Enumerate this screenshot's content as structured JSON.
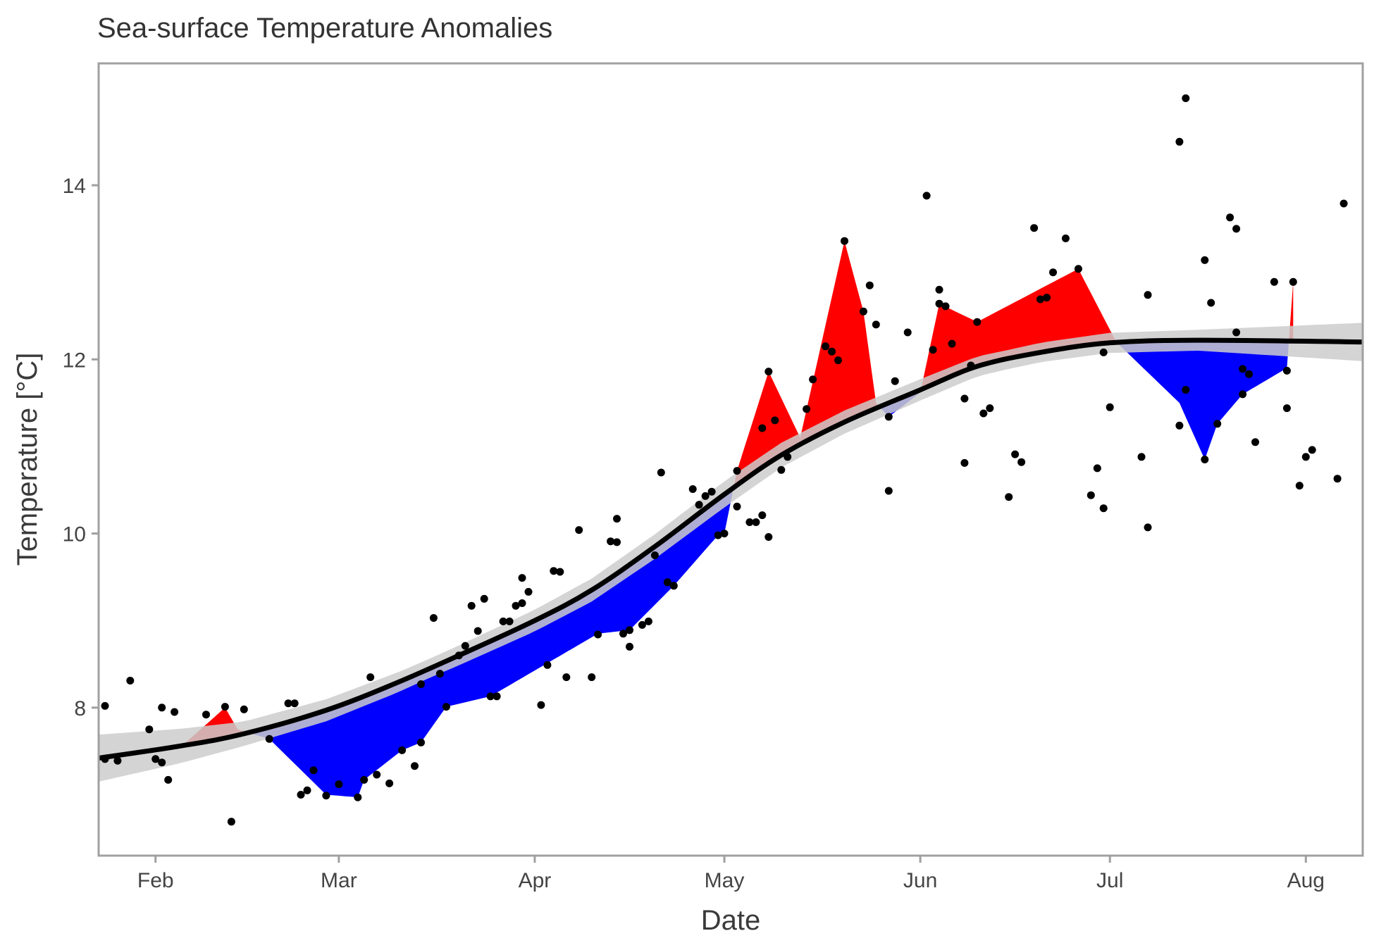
{
  "chart_data": {
    "type": "line",
    "title": "Sea-surface Temperature Anomalies",
    "xlabel": "Date",
    "ylabel": "Temperature [°C]",
    "x_ticks": [
      "Feb",
      "Mar",
      "Apr",
      "May",
      "Jun",
      "Jul",
      "Aug"
    ],
    "x_tick_dates": [
      "2000-02-01",
      "2000-03-01",
      "2000-04-01",
      "2000-05-01",
      "2000-06-01",
      "2000-07-01",
      "2000-08-01"
    ],
    "y_ticks": [
      8,
      10,
      12,
      14
    ],
    "xlim": [
      "2000-01-23",
      "2000-08-10"
    ],
    "ylim": [
      6.3,
      15.4
    ],
    "grid": false,
    "colors": {
      "above": "#ff0000",
      "below": "#0000ff",
      "trend": "#000000",
      "band": "#cccccc",
      "points": "#000000",
      "frame": "#a0a0a0"
    },
    "points": [
      {
        "x": "2000-01-24",
        "y": 8.02
      },
      {
        "x": "2000-01-24",
        "y": 7.41
      },
      {
        "x": "2000-01-26",
        "y": 7.39
      },
      {
        "x": "2000-01-28",
        "y": 8.31
      },
      {
        "x": "2000-01-31",
        "y": 7.75
      },
      {
        "x": "2000-02-01",
        "y": 7.41
      },
      {
        "x": "2000-02-02",
        "y": 8.0
      },
      {
        "x": "2000-02-02",
        "y": 7.37
      },
      {
        "x": "2000-02-03",
        "y": 7.17
      },
      {
        "x": "2000-02-04",
        "y": 7.95
      },
      {
        "x": "2000-02-09",
        "y": 7.92
      },
      {
        "x": "2000-02-12",
        "y": 8.01
      },
      {
        "x": "2000-02-13",
        "y": 6.69
      },
      {
        "x": "2000-02-15",
        "y": 7.98
      },
      {
        "x": "2000-02-19",
        "y": 7.64
      },
      {
        "x": "2000-02-22",
        "y": 8.05
      },
      {
        "x": "2000-02-23",
        "y": 8.05
      },
      {
        "x": "2000-02-24",
        "y": 7.0
      },
      {
        "x": "2000-02-25",
        "y": 7.05
      },
      {
        "x": "2000-02-26",
        "y": 7.28
      },
      {
        "x": "2000-02-28",
        "y": 6.99
      },
      {
        "x": "2000-03-01",
        "y": 7.12
      },
      {
        "x": "2000-03-04",
        "y": 6.97
      },
      {
        "x": "2000-03-05",
        "y": 7.17
      },
      {
        "x": "2000-03-06",
        "y": 8.35
      },
      {
        "x": "2000-03-07",
        "y": 7.23
      },
      {
        "x": "2000-03-09",
        "y": 7.13
      },
      {
        "x": "2000-03-11",
        "y": 7.51
      },
      {
        "x": "2000-03-13",
        "y": 7.33
      },
      {
        "x": "2000-03-14",
        "y": 8.27
      },
      {
        "x": "2000-03-14",
        "y": 7.6
      },
      {
        "x": "2000-03-16",
        "y": 9.03
      },
      {
        "x": "2000-03-17",
        "y": 8.39
      },
      {
        "x": "2000-03-18",
        "y": 8.01
      },
      {
        "x": "2000-03-20",
        "y": 8.6
      },
      {
        "x": "2000-03-21",
        "y": 8.71
      },
      {
        "x": "2000-03-22",
        "y": 9.17
      },
      {
        "x": "2000-03-23",
        "y": 8.88
      },
      {
        "x": "2000-03-24",
        "y": 9.25
      },
      {
        "x": "2000-03-25",
        "y": 8.13
      },
      {
        "x": "2000-03-26",
        "y": 8.13
      },
      {
        "x": "2000-03-27",
        "y": 8.99
      },
      {
        "x": "2000-03-28",
        "y": 8.99
      },
      {
        "x": "2000-03-29",
        "y": 9.17
      },
      {
        "x": "2000-03-30",
        "y": 9.49
      },
      {
        "x": "2000-03-30",
        "y": 9.2
      },
      {
        "x": "2000-03-31",
        "y": 9.33
      },
      {
        "x": "2000-04-02",
        "y": 8.03
      },
      {
        "x": "2000-04-03",
        "y": 8.49
      },
      {
        "x": "2000-04-04",
        "y": 9.57
      },
      {
        "x": "2000-04-05",
        "y": 9.56
      },
      {
        "x": "2000-04-06",
        "y": 8.35
      },
      {
        "x": "2000-04-08",
        "y": 10.04
      },
      {
        "x": "2000-04-10",
        "y": 8.35
      },
      {
        "x": "2000-04-11",
        "y": 8.84
      },
      {
        "x": "2000-04-13",
        "y": 9.91
      },
      {
        "x": "2000-04-14",
        "y": 10.17
      },
      {
        "x": "2000-04-14",
        "y": 9.9
      },
      {
        "x": "2000-04-15",
        "y": 8.85
      },
      {
        "x": "2000-04-16",
        "y": 8.89
      },
      {
        "x": "2000-04-16",
        "y": 8.7
      },
      {
        "x": "2000-04-18",
        "y": 8.95
      },
      {
        "x": "2000-04-19",
        "y": 8.99
      },
      {
        "x": "2000-04-20",
        "y": 9.75
      },
      {
        "x": "2000-04-21",
        "y": 10.7
      },
      {
        "x": "2000-04-22",
        "y": 9.44
      },
      {
        "x": "2000-04-23",
        "y": 9.4
      },
      {
        "x": "2000-04-26",
        "y": 10.51
      },
      {
        "x": "2000-04-27",
        "y": 10.33
      },
      {
        "x": "2000-04-28",
        "y": 10.43
      },
      {
        "x": "2000-04-29",
        "y": 10.48
      },
      {
        "x": "2000-04-30",
        "y": 9.98
      },
      {
        "x": "2000-05-01",
        "y": 10.0
      },
      {
        "x": "2000-05-03",
        "y": 10.72
      },
      {
        "x": "2000-05-03",
        "y": 10.31
      },
      {
        "x": "2000-05-05",
        "y": 10.13
      },
      {
        "x": "2000-05-06",
        "y": 10.13
      },
      {
        "x": "2000-05-07",
        "y": 11.21
      },
      {
        "x": "2000-05-07",
        "y": 10.21
      },
      {
        "x": "2000-05-08",
        "y": 11.86
      },
      {
        "x": "2000-05-08",
        "y": 9.96
      },
      {
        "x": "2000-05-09",
        "y": 11.3
      },
      {
        "x": "2000-05-10",
        "y": 10.73
      },
      {
        "x": "2000-05-11",
        "y": 10.88
      },
      {
        "x": "2000-05-14",
        "y": 11.43
      },
      {
        "x": "2000-05-15",
        "y": 11.77
      },
      {
        "x": "2000-05-17",
        "y": 12.15
      },
      {
        "x": "2000-05-18",
        "y": 12.09
      },
      {
        "x": "2000-05-19",
        "y": 11.99
      },
      {
        "x": "2000-05-20",
        "y": 13.36
      },
      {
        "x": "2000-05-23",
        "y": 12.55
      },
      {
        "x": "2000-05-24",
        "y": 12.85
      },
      {
        "x": "2000-05-25",
        "y": 12.4
      },
      {
        "x": "2000-05-27",
        "y": 11.34
      },
      {
        "x": "2000-05-27",
        "y": 10.49
      },
      {
        "x": "2000-05-28",
        "y": 11.75
      },
      {
        "x": "2000-05-30",
        "y": 12.31
      },
      {
        "x": "2000-06-02",
        "y": 13.88
      },
      {
        "x": "2000-06-03",
        "y": 12.11
      },
      {
        "x": "2000-06-04",
        "y": 12.8
      },
      {
        "x": "2000-06-04",
        "y": 12.64
      },
      {
        "x": "2000-06-05",
        "y": 12.61
      },
      {
        "x": "2000-06-06",
        "y": 12.18
      },
      {
        "x": "2000-06-08",
        "y": 11.55
      },
      {
        "x": "2000-06-08",
        "y": 10.81
      },
      {
        "x": "2000-06-09",
        "y": 11.93
      },
      {
        "x": "2000-06-10",
        "y": 12.43
      },
      {
        "x": "2000-06-11",
        "y": 11.38
      },
      {
        "x": "2000-06-12",
        "y": 11.44
      },
      {
        "x": "2000-06-15",
        "y": 10.42
      },
      {
        "x": "2000-06-16",
        "y": 10.91
      },
      {
        "x": "2000-06-17",
        "y": 10.82
      },
      {
        "x": "2000-06-19",
        "y": 13.51
      },
      {
        "x": "2000-06-20",
        "y": 12.69
      },
      {
        "x": "2000-06-21",
        "y": 12.71
      },
      {
        "x": "2000-06-22",
        "y": 13.0
      },
      {
        "x": "2000-06-24",
        "y": 13.39
      },
      {
        "x": "2000-06-26",
        "y": 13.04
      },
      {
        "x": "2000-06-28",
        "y": 10.44
      },
      {
        "x": "2000-06-29",
        "y": 10.75
      },
      {
        "x": "2000-06-30",
        "y": 10.29
      },
      {
        "x": "2000-06-30",
        "y": 12.08
      },
      {
        "x": "2000-07-01",
        "y": 11.45
      },
      {
        "x": "2000-07-06",
        "y": 10.88
      },
      {
        "x": "2000-07-07",
        "y": 10.07
      },
      {
        "x": "2000-07-07",
        "y": 12.74
      },
      {
        "x": "2000-07-12",
        "y": 14.5
      },
      {
        "x": "2000-07-12",
        "y": 11.24
      },
      {
        "x": "2000-07-13",
        "y": 15.0
      },
      {
        "x": "2000-07-13",
        "y": 11.65
      },
      {
        "x": "2000-07-16",
        "y": 13.14
      },
      {
        "x": "2000-07-16",
        "y": 10.85
      },
      {
        "x": "2000-07-17",
        "y": 12.65
      },
      {
        "x": "2000-07-18",
        "y": 11.26
      },
      {
        "x": "2000-07-20",
        "y": 13.63
      },
      {
        "x": "2000-07-21",
        "y": 13.5
      },
      {
        "x": "2000-07-21",
        "y": 12.31
      },
      {
        "x": "2000-07-22",
        "y": 11.89
      },
      {
        "x": "2000-07-22",
        "y": 11.6
      },
      {
        "x": "2000-07-23",
        "y": 11.83
      },
      {
        "x": "2000-07-24",
        "y": 11.05
      },
      {
        "x": "2000-07-27",
        "y": 12.89
      },
      {
        "x": "2000-07-29",
        "y": 11.87
      },
      {
        "x": "2000-07-29",
        "y": 11.44
      },
      {
        "x": "2000-07-30",
        "y": 12.89
      },
      {
        "x": "2000-07-31",
        "y": 10.55
      },
      {
        "x": "2000-08-01",
        "y": 10.88
      },
      {
        "x": "2000-08-02",
        "y": 10.96
      },
      {
        "x": "2000-08-06",
        "y": 10.63
      },
      {
        "x": "2000-08-07",
        "y": 13.79
      }
    ],
    "anomaly_path": [
      {
        "x": "2000-02-05",
        "y": 7.55
      },
      {
        "x": "2000-02-12",
        "y": 8.0
      },
      {
        "x": "2000-02-14",
        "y": 7.75
      },
      {
        "x": "2000-02-19",
        "y": 7.64
      },
      {
        "x": "2000-02-28",
        "y": 7.0
      },
      {
        "x": "2000-03-04",
        "y": 6.97
      },
      {
        "x": "2000-03-05",
        "y": 7.17
      },
      {
        "x": "2000-03-11",
        "y": 7.51
      },
      {
        "x": "2000-03-14",
        "y": 7.6
      },
      {
        "x": "2000-03-18",
        "y": 8.01
      },
      {
        "x": "2000-03-25",
        "y": 8.13
      },
      {
        "x": "2000-04-11",
        "y": 8.85
      },
      {
        "x": "2000-04-16",
        "y": 8.89
      },
      {
        "x": "2000-04-23",
        "y": 9.4
      },
      {
        "x": "2000-04-30",
        "y": 9.98
      },
      {
        "x": "2000-05-01",
        "y": 10.0
      },
      {
        "x": "2000-05-03",
        "y": 10.72
      },
      {
        "x": "2000-05-08",
        "y": 11.86
      },
      {
        "x": "2000-05-13",
        "y": 11.1
      },
      {
        "x": "2000-05-20",
        "y": 13.36
      },
      {
        "x": "2000-05-23",
        "y": 12.55
      },
      {
        "x": "2000-05-25",
        "y": 11.5
      },
      {
        "x": "2000-05-27",
        "y": 11.34
      },
      {
        "x": "2000-06-01",
        "y": 11.62
      },
      {
        "x": "2000-06-04",
        "y": 12.64
      },
      {
        "x": "2000-06-10",
        "y": 12.43
      },
      {
        "x": "2000-06-26",
        "y": 13.04
      },
      {
        "x": "2000-07-02",
        "y": 12.2
      },
      {
        "x": "2000-07-12",
        "y": 11.5
      },
      {
        "x": "2000-07-16",
        "y": 10.85
      },
      {
        "x": "2000-07-18",
        "y": 11.26
      },
      {
        "x": "2000-07-22",
        "y": 11.6
      },
      {
        "x": "2000-07-29",
        "y": 11.9
      },
      {
        "x": "2000-07-30",
        "y": 12.89
      }
    ],
    "trend": [
      {
        "x": "2000-01-23",
        "y": 7.42
      },
      {
        "x": "2000-02-05",
        "y": 7.56
      },
      {
        "x": "2000-02-15",
        "y": 7.7
      },
      {
        "x": "2000-02-28",
        "y": 7.97
      },
      {
        "x": "2000-03-10",
        "y": 8.28
      },
      {
        "x": "2000-03-20",
        "y": 8.6
      },
      {
        "x": "2000-04-01",
        "y": 9.0
      },
      {
        "x": "2000-04-10",
        "y": 9.35
      },
      {
        "x": "2000-04-20",
        "y": 9.85
      },
      {
        "x": "2000-05-01",
        "y": 10.45
      },
      {
        "x": "2000-05-10",
        "y": 10.9
      },
      {
        "x": "2000-05-20",
        "y": 11.28
      },
      {
        "x": "2000-06-01",
        "y": 11.65
      },
      {
        "x": "2000-06-10",
        "y": 11.92
      },
      {
        "x": "2000-06-20",
        "y": 12.08
      },
      {
        "x": "2000-07-01",
        "y": 12.19
      },
      {
        "x": "2000-07-15",
        "y": 12.22
      },
      {
        "x": "2000-08-10",
        "y": 12.2
      }
    ],
    "band_halfwidth": [
      {
        "x": "2000-01-23",
        "y": 0.27
      },
      {
        "x": "2000-02-15",
        "y": 0.14
      },
      {
        "x": "2000-03-15",
        "y": 0.11
      },
      {
        "x": "2000-05-01",
        "y": 0.15
      },
      {
        "x": "2000-06-15",
        "y": 0.11
      },
      {
        "x": "2000-07-15",
        "y": 0.12
      },
      {
        "x": "2000-08-10",
        "y": 0.22
      }
    ]
  }
}
